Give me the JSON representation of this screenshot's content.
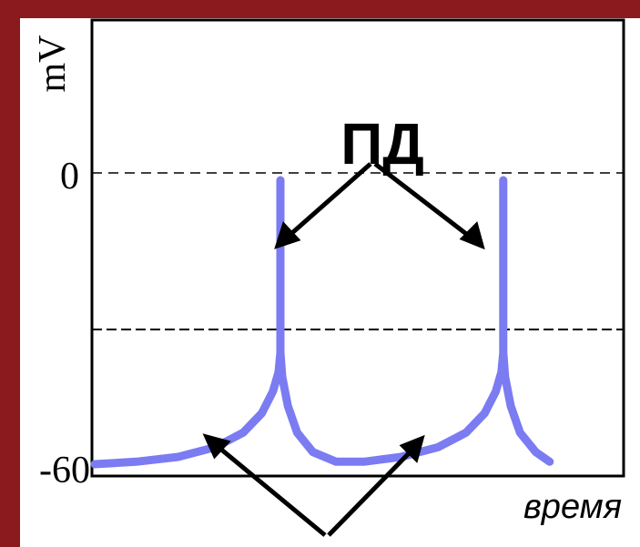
{
  "chart_data": {
    "type": "line",
    "title": "",
    "ylabel": "mV",
    "xlabel": "время",
    "y_ticks": [
      "0",
      "-60"
    ],
    "ylim": [
      -60,
      0
    ],
    "threshold_line": {
      "style": "dashed"
    },
    "zero_line": {
      "style": "dashed"
    },
    "annotations": [
      {
        "text": "ПД",
        "points_to": "action potential spikes"
      },
      {
        "text": "",
        "points_to": "slow depolarization phases"
      }
    ],
    "series": [
      {
        "color": "#7b7bf2",
        "points": [
          {
            "x": 0,
            "y": -60
          },
          {
            "x": 0.45,
            "y": -59.5
          },
          {
            "x": 0.9,
            "y": -58.5
          },
          {
            "x": 1.3,
            "y": -56.5
          },
          {
            "x": 1.6,
            "y": -53.5
          },
          {
            "x": 1.8,
            "y": -49.5
          },
          {
            "x": 1.92,
            "y": -45
          },
          {
            "x": 1.98,
            "y": -41
          },
          {
            "x": 2.0,
            "y": -37
          },
          {
            "x": 2.0,
            "y": -1.5
          },
          {
            "x": 2.0,
            "y": -37
          },
          {
            "x": 2.02,
            "y": -42
          },
          {
            "x": 2.08,
            "y": -48
          },
          {
            "x": 2.18,
            "y": -53.5
          },
          {
            "x": 2.35,
            "y": -57.5
          },
          {
            "x": 2.6,
            "y": -59.5
          },
          {
            "x": 2.9,
            "y": -59.5
          },
          {
            "x": 3.3,
            "y": -58.5
          },
          {
            "x": 3.7,
            "y": -56.5
          },
          {
            "x": 4.0,
            "y": -53.5
          },
          {
            "x": 4.2,
            "y": -49.5
          },
          {
            "x": 4.32,
            "y": -45
          },
          {
            "x": 4.38,
            "y": -41
          },
          {
            "x": 4.4,
            "y": -37
          },
          {
            "x": 4.4,
            "y": -1.5
          },
          {
            "x": 4.4,
            "y": -37
          },
          {
            "x": 4.42,
            "y": -42
          },
          {
            "x": 4.48,
            "y": -48
          },
          {
            "x": 4.58,
            "y": -53.5
          },
          {
            "x": 4.75,
            "y": -57.5
          },
          {
            "x": 4.9,
            "y": -59.5
          }
        ]
      }
    ]
  },
  "colors": {
    "frame_bar": "#8b1a1f",
    "trace": "#7b7bf2",
    "axis": "#000000",
    "arrow": "#000000"
  }
}
